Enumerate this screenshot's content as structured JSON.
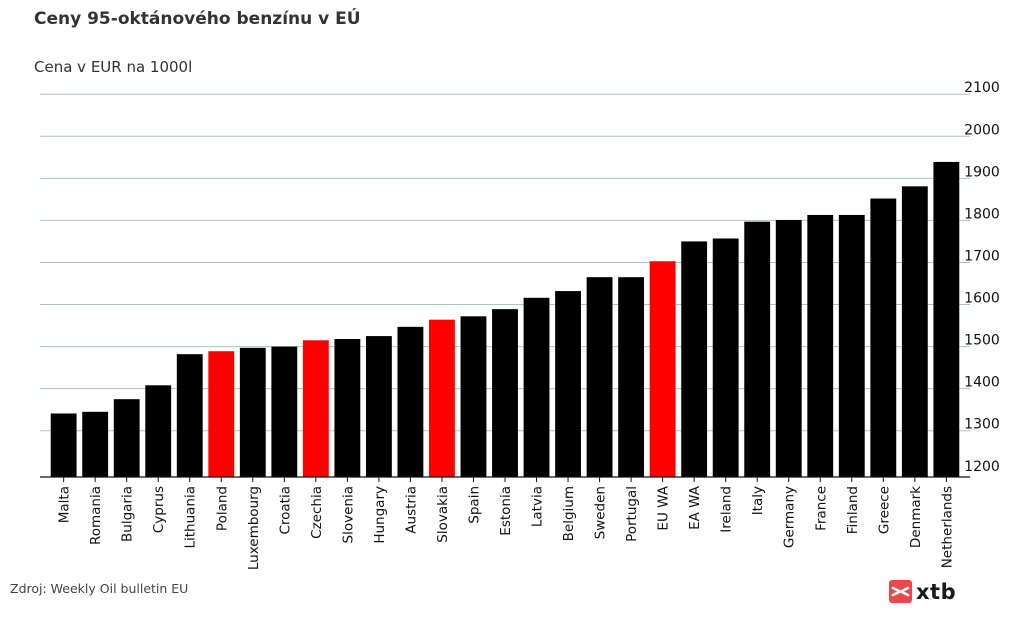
{
  "title": "Ceny 95-oktánového benzínu v EÚ",
  "subtitle": "Cena v EUR na 1000l",
  "source": "Zdroj: Weekly Oil bulletin EU",
  "logo": {
    "text": "xtb",
    "icon": "xtb-logo-icon",
    "color": "#e8474c"
  },
  "colors": {
    "default_bar": "#000000",
    "highlight_bar": "#ff0000",
    "grid": "#a9c4c0"
  },
  "chart_data": {
    "type": "bar",
    "categories": [
      "Malta",
      "Romania",
      "Bulgaria",
      "Cyprus",
      "Lithuania",
      "Poland",
      "Luxembourg",
      "Croatia",
      "Czechia",
      "Slovenia",
      "Hungary",
      "Austria",
      "Slovakia",
      "Spain",
      "Estonia",
      "Latvia",
      "Belgium",
      "Sweden",
      "Portugal",
      "EU WA",
      "EA WA",
      "Ireland",
      "Italy",
      "Germany",
      "France",
      "Finland",
      "Greece",
      "Denmark",
      "Netherlands"
    ],
    "values": [
      1341,
      1345,
      1375,
      1408,
      1482,
      1489,
      1497,
      1500,
      1515,
      1518,
      1525,
      1547,
      1564,
      1572,
      1589,
      1616,
      1632,
      1665,
      1665,
      1703,
      1750,
      1757,
      1797,
      1801,
      1813,
      1813,
      1852,
      1881,
      1939
    ],
    "highlighted": [
      "Poland",
      "Czechia",
      "Slovakia",
      "EU WA"
    ],
    "yticks": [
      1200,
      1300,
      1400,
      1500,
      1600,
      1700,
      1800,
      1900,
      2000,
      2100
    ],
    "ylim": [
      1190,
      2110
    ],
    "grid": true,
    "ytick_side": "right",
    "xlabel": "",
    "ylabel": ""
  }
}
